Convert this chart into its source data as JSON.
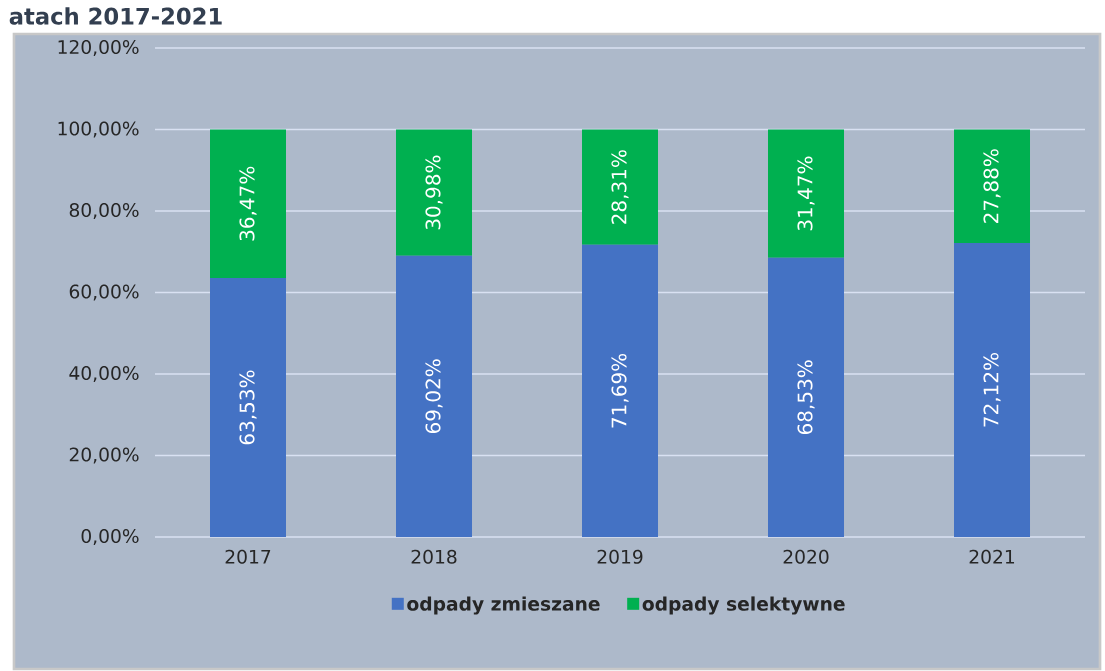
{
  "chart_data": {
    "type": "bar",
    "title": "atach 2017-2021",
    "stacked": true,
    "categories": [
      "2017",
      "2018",
      "2019",
      "2020",
      "2021"
    ],
    "series": [
      {
        "name": "odpady zmieszane",
        "color": "#4472c4",
        "values": [
          63.53,
          69.02,
          71.69,
          68.53,
          72.12
        ],
        "value_labels": [
          "63,53%",
          "69,02%",
          "71,69%",
          "68,53%",
          "72,12%"
        ]
      },
      {
        "name": "odpady selektywne",
        "color": "#00b050",
        "values": [
          36.47,
          30.98,
          28.31,
          31.47,
          27.88
        ],
        "value_labels": [
          "36,47%",
          "30,98%",
          "28,31%",
          "31,47%",
          "27,88%"
        ]
      }
    ],
    "ylim": [
      0,
      120
    ],
    "yticks": [
      {
        "value": 0,
        "label": "0,00%"
      },
      {
        "value": 20,
        "label": "20,00%"
      },
      {
        "value": 40,
        "label": "40,00%"
      },
      {
        "value": 60,
        "label": "60,00%"
      },
      {
        "value": 80,
        "label": "80,00%"
      },
      {
        "value": 100,
        "label": "100,00%"
      },
      {
        "value": 120,
        "label": "120,00%"
      }
    ],
    "grid": "y",
    "legend": "bottom"
  }
}
